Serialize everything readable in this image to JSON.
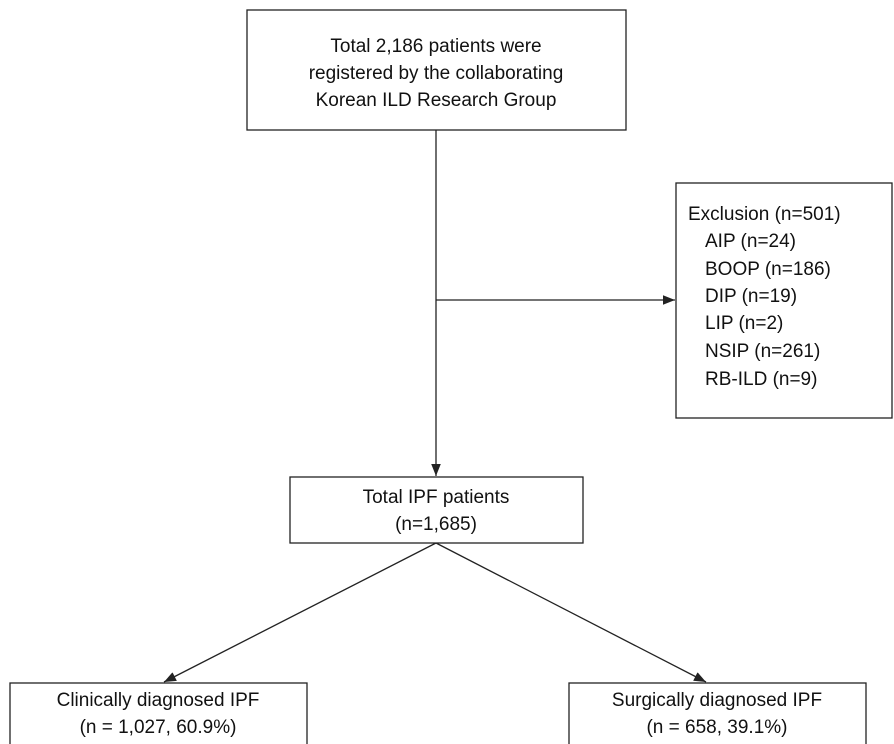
{
  "nodes": [
    {
      "lines": [
        "Total 2,186 patients were",
        "registered by the collaborating",
        "Korean ILD Research Group"
      ]
    },
    {
      "title": "Exclusion (n=501)",
      "items": [
        "AIP (n=24)",
        "BOOP (n=186)",
        "DIP (n=19)",
        "LIP (n=2)",
        "NSIP (n=261)",
        "RB-ILD (n=9)"
      ]
    },
    {
      "lines": [
        "Total IPF patients",
        "(n=1,685)"
      ]
    },
    {
      "lines": [
        "Clinically diagnosed IPF",
        "(n = 1,027, 60.9%)"
      ]
    },
    {
      "lines": [
        "Surgically diagnosed IPF",
        "(n = 658, 39.1%)"
      ]
    }
  ]
}
